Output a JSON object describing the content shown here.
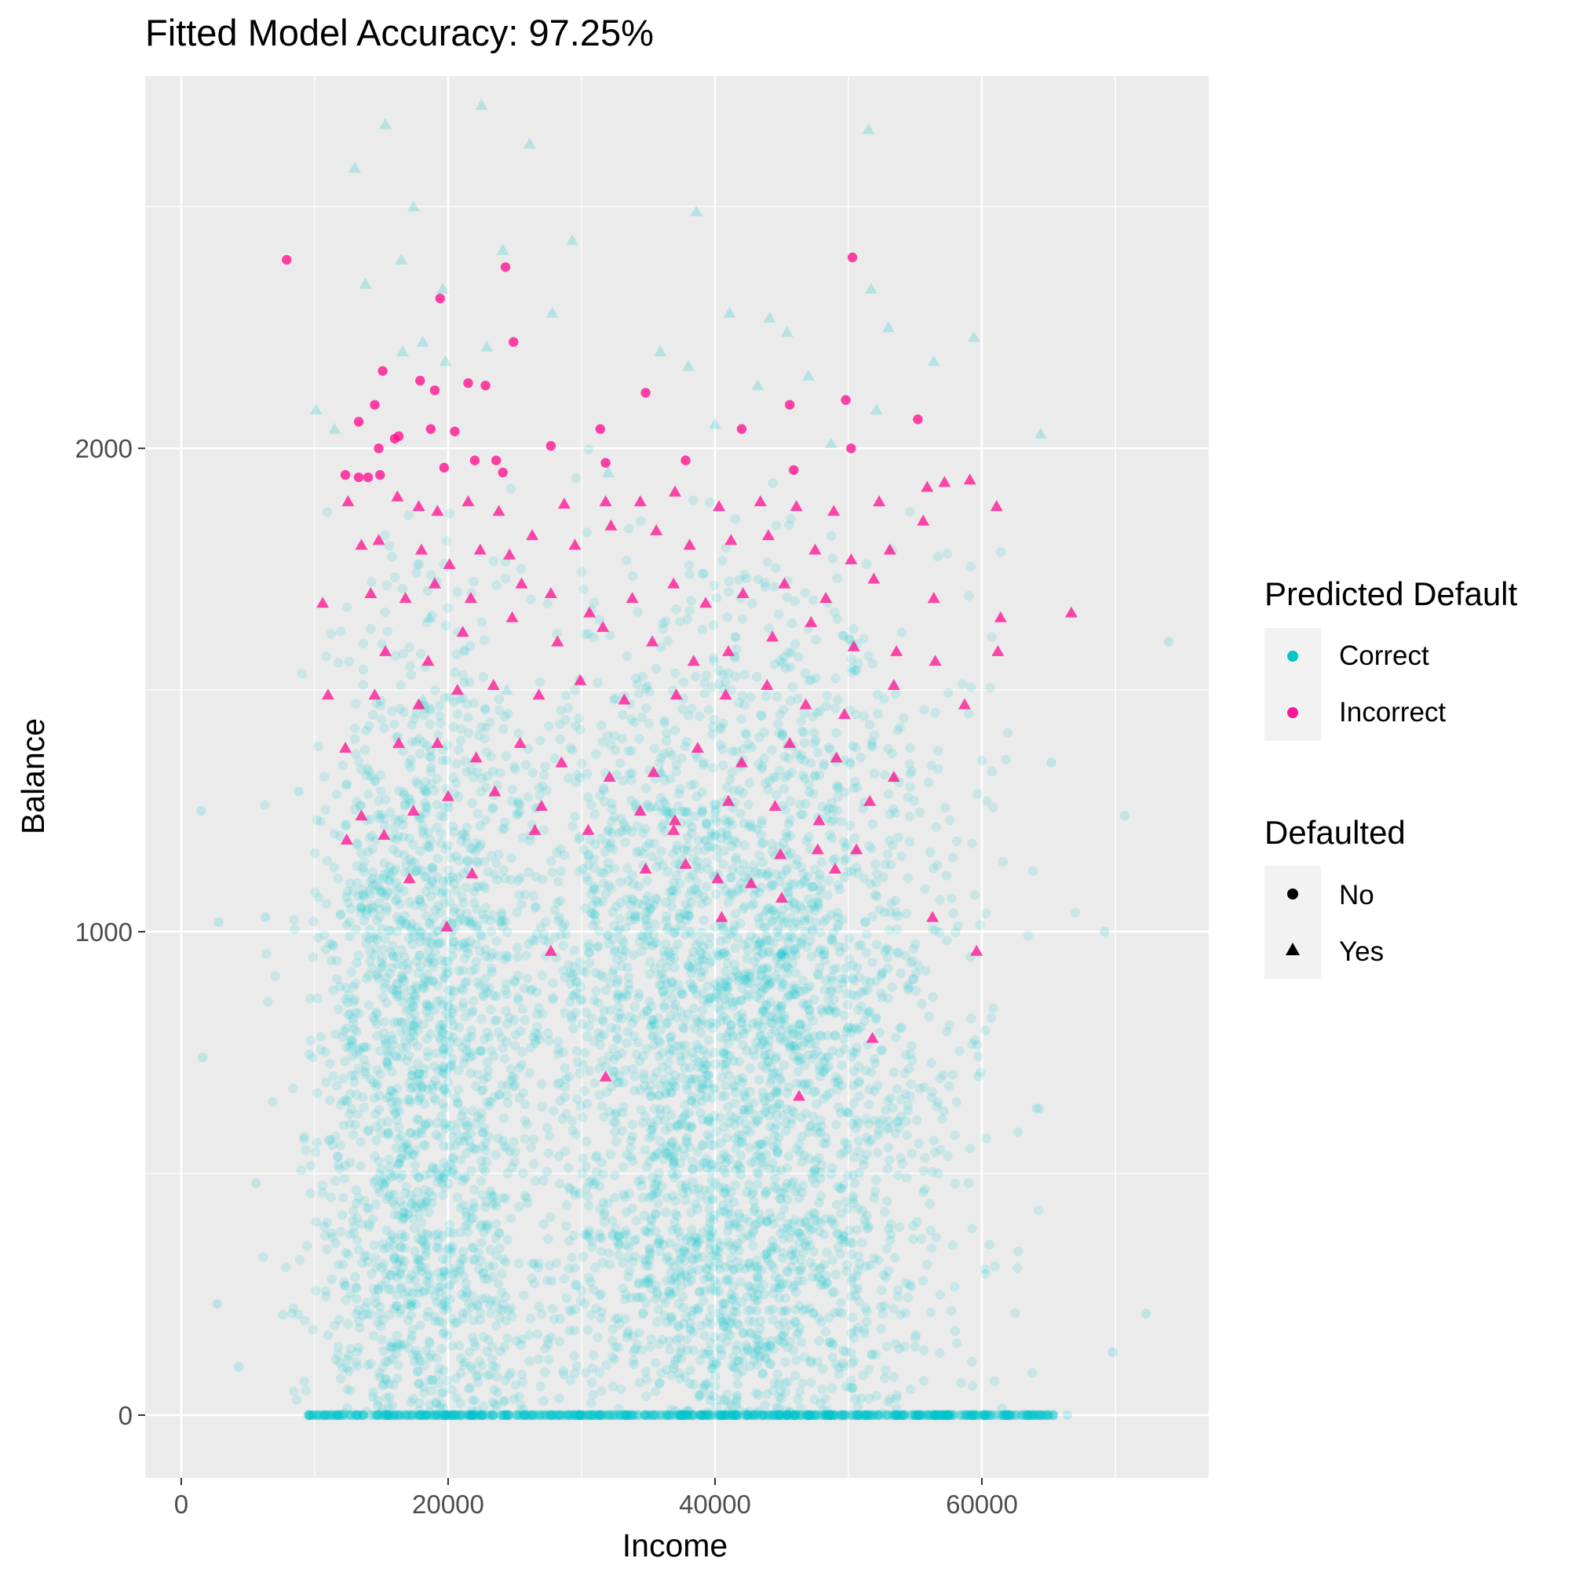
{
  "chart_data": {
    "type": "scatter",
    "title": "Fitted Model Accuracy: 97.25%",
    "xlabel": "Income",
    "ylabel": "Balance",
    "xlim": [
      -2700,
      77000
    ],
    "ylim": [
      -130,
      2770
    ],
    "x_ticks": [
      0,
      20000,
      40000,
      60000
    ],
    "y_ticks": [
      0,
      1000,
      2000
    ],
    "grid": true,
    "legend_placement": "right",
    "colors": {
      "correct": "#00c5cd",
      "incorrect": "#ff1493",
      "panel": "#ebebeb",
      "grid": "#ffffff"
    },
    "legends": [
      {
        "title": "Predicted Default",
        "entries": [
          {
            "label": "Correct",
            "color": "#00c5cd",
            "shape": "circle"
          },
          {
            "label": "Incorrect",
            "color": "#ff1493",
            "shape": "circle"
          }
        ]
      },
      {
        "title": "Defaulted",
        "entries": [
          {
            "label": "No",
            "color": "#000000",
            "shape": "circle"
          },
          {
            "label": "Yes",
            "color": "#000000",
            "shape": "triangle"
          }
        ]
      }
    ],
    "incorrect_no": [
      [
        7900,
        2390
      ],
      [
        24300,
        2375
      ],
      [
        50300,
        2395
      ],
      [
        19400,
        2310
      ],
      [
        24900,
        2220
      ],
      [
        15100,
        2160
      ],
      [
        17900,
        2140
      ],
      [
        19000,
        2120
      ],
      [
        21500,
        2135
      ],
      [
        22800,
        2130
      ],
      [
        34800,
        2115
      ],
      [
        14500,
        2090
      ],
      [
        45600,
        2090
      ],
      [
        49800,
        2100
      ],
      [
        13300,
        2055
      ],
      [
        18700,
        2040
      ],
      [
        20500,
        2035
      ],
      [
        31400,
        2040
      ],
      [
        42000,
        2040
      ],
      [
        55200,
        2060
      ],
      [
        14800,
        2000
      ],
      [
        16000,
        2020
      ],
      [
        27700,
        2005
      ],
      [
        50200,
        2000
      ],
      [
        22000,
        1975
      ],
      [
        23600,
        1975
      ],
      [
        31800,
        1970
      ],
      [
        37800,
        1975
      ],
      [
        12300,
        1945
      ],
      [
        13300,
        1940
      ],
      [
        14000,
        1940
      ],
      [
        14900,
        1945
      ],
      [
        24100,
        1950
      ],
      [
        45900,
        1955
      ],
      [
        19700,
        1960
      ],
      [
        16300,
        2025
      ]
    ],
    "incorrect_yes": [
      [
        12500,
        1890
      ],
      [
        16200,
        1900
      ],
      [
        17800,
        1880
      ],
      [
        19200,
        1870
      ],
      [
        21500,
        1890
      ],
      [
        23800,
        1870
      ],
      [
        28700,
        1885
      ],
      [
        31800,
        1890
      ],
      [
        34400,
        1890
      ],
      [
        37000,
        1910
      ],
      [
        40300,
        1880
      ],
      [
        43400,
        1890
      ],
      [
        46100,
        1880
      ],
      [
        48900,
        1870
      ],
      [
        52300,
        1890
      ],
      [
        55900,
        1920
      ],
      [
        57200,
        1930
      ],
      [
        59100,
        1935
      ],
      [
        61100,
        1880
      ],
      [
        13500,
        1800
      ],
      [
        14800,
        1810
      ],
      [
        18000,
        1790
      ],
      [
        20100,
        1760
      ],
      [
        22400,
        1790
      ],
      [
        24600,
        1780
      ],
      [
        26300,
        1820
      ],
      [
        29500,
        1800
      ],
      [
        32200,
        1840
      ],
      [
        35600,
        1830
      ],
      [
        38100,
        1800
      ],
      [
        41200,
        1810
      ],
      [
        44000,
        1820
      ],
      [
        47500,
        1790
      ],
      [
        50200,
        1770
      ],
      [
        53100,
        1790
      ],
      [
        55600,
        1850
      ],
      [
        10600,
        1680
      ],
      [
        14200,
        1700
      ],
      [
        16800,
        1690
      ],
      [
        19000,
        1720
      ],
      [
        21700,
        1690
      ],
      [
        25500,
        1720
      ],
      [
        27700,
        1700
      ],
      [
        30600,
        1660
      ],
      [
        33800,
        1690
      ],
      [
        36900,
        1720
      ],
      [
        39300,
        1680
      ],
      [
        42100,
        1700
      ],
      [
        45200,
        1720
      ],
      [
        48300,
        1690
      ],
      [
        51900,
        1730
      ],
      [
        56400,
        1690
      ],
      [
        61400,
        1650
      ],
      [
        66700,
        1660
      ],
      [
        15300,
        1580
      ],
      [
        18500,
        1560
      ],
      [
        21100,
        1620
      ],
      [
        24800,
        1650
      ],
      [
        28200,
        1600
      ],
      [
        31600,
        1630
      ],
      [
        35300,
        1600
      ],
      [
        38400,
        1560
      ],
      [
        41000,
        1580
      ],
      [
        44300,
        1610
      ],
      [
        47200,
        1640
      ],
      [
        50400,
        1590
      ],
      [
        53600,
        1580
      ],
      [
        56500,
        1560
      ],
      [
        61200,
        1580
      ],
      [
        11000,
        1490
      ],
      [
        14500,
        1490
      ],
      [
        17800,
        1470
      ],
      [
        20700,
        1500
      ],
      [
        23400,
        1510
      ],
      [
        26800,
        1490
      ],
      [
        29900,
        1520
      ],
      [
        33200,
        1480
      ],
      [
        37100,
        1490
      ],
      [
        40800,
        1490
      ],
      [
        43900,
        1510
      ],
      [
        46800,
        1470
      ],
      [
        49700,
        1450
      ],
      [
        53400,
        1510
      ],
      [
        58700,
        1470
      ],
      [
        12300,
        1380
      ],
      [
        16300,
        1390
      ],
      [
        19200,
        1390
      ],
      [
        22100,
        1360
      ],
      [
        25400,
        1390
      ],
      [
        28500,
        1350
      ],
      [
        32100,
        1320
      ],
      [
        35400,
        1330
      ],
      [
        38700,
        1380
      ],
      [
        42000,
        1350
      ],
      [
        45600,
        1390
      ],
      [
        49100,
        1360
      ],
      [
        53400,
        1320
      ],
      [
        13500,
        1240
      ],
      [
        17400,
        1250
      ],
      [
        20000,
        1280
      ],
      [
        23500,
        1290
      ],
      [
        27000,
        1260
      ],
      [
        30500,
        1210
      ],
      [
        34400,
        1250
      ],
      [
        37000,
        1230
      ],
      [
        41000,
        1270
      ],
      [
        44500,
        1260
      ],
      [
        47800,
        1230
      ],
      [
        51600,
        1270
      ],
      [
        12400,
        1190
      ],
      [
        15200,
        1200
      ],
      [
        26500,
        1210
      ],
      [
        36900,
        1210
      ],
      [
        44900,
        1160
      ],
      [
        47700,
        1170
      ],
      [
        50600,
        1170
      ],
      [
        17100,
        1110
      ],
      [
        21800,
        1120
      ],
      [
        34800,
        1130
      ],
      [
        37800,
        1140
      ],
      [
        40200,
        1110
      ],
      [
        42700,
        1100
      ],
      [
        45000,
        1070
      ],
      [
        49000,
        1130
      ],
      [
        19900,
        1010
      ],
      [
        40500,
        1030
      ],
      [
        56300,
        1030
      ],
      [
        27700,
        960
      ],
      [
        59600,
        960
      ],
      [
        51800,
        780
      ],
      [
        31800,
        700
      ],
      [
        46300,
        660
      ]
    ],
    "correct_yes": [
      [
        22500,
        2710
      ],
      [
        26100,
        2630
      ],
      [
        15300,
        2670
      ],
      [
        51500,
        2660
      ],
      [
        13000,
        2580
      ],
      [
        17400,
        2500
      ],
      [
        29300,
        2430
      ],
      [
        38600,
        2490
      ],
      [
        13800,
        2340
      ],
      [
        19600,
        2330
      ],
      [
        24100,
        2410
      ],
      [
        16500,
        2390
      ],
      [
        51700,
        2330
      ],
      [
        53000,
        2250
      ],
      [
        27800,
        2280
      ],
      [
        41100,
        2280
      ],
      [
        44100,
        2270
      ],
      [
        45400,
        2240
      ],
      [
        59400,
        2230
      ],
      [
        64400,
        2030
      ],
      [
        10100,
        2080
      ],
      [
        11500,
        2040
      ],
      [
        16600,
        2200
      ],
      [
        18100,
        2220
      ],
      [
        19800,
        2180
      ],
      [
        22900,
        2210
      ],
      [
        35900,
        2200
      ],
      [
        43200,
        2130
      ],
      [
        47000,
        2150
      ],
      [
        52100,
        2080
      ],
      [
        56400,
        2180
      ],
      [
        38000,
        2170
      ],
      [
        40000,
        2050
      ],
      [
        32000,
        1950
      ],
      [
        48700,
        2010
      ],
      [
        36000,
        1330
      ],
      [
        18100,
        1480
      ],
      [
        18600,
        1650
      ],
      [
        24400,
        1500
      ],
      [
        35600,
        1260
      ]
    ],
    "correct_no_sample": [
      [
        9500,
        0
      ],
      [
        12400,
        0
      ],
      [
        14600,
        0
      ],
      [
        17800,
        0
      ],
      [
        21000,
        0
      ],
      [
        24300,
        0
      ],
      [
        27600,
        0
      ],
      [
        30900,
        0
      ],
      [
        34200,
        0
      ],
      [
        37500,
        0
      ],
      [
        40800,
        0
      ],
      [
        44100,
        0
      ],
      [
        47400,
        0
      ],
      [
        50700,
        0
      ],
      [
        54000,
        0
      ],
      [
        57300,
        0
      ],
      [
        60600,
        0
      ],
      [
        63500,
        0
      ],
      [
        66400,
        0
      ],
      [
        74000,
        1600
      ],
      [
        72300,
        210
      ],
      [
        69800,
        130
      ],
      [
        70700,
        1240
      ],
      [
        69200,
        1000
      ],
      [
        65200,
        1350
      ],
      [
        1500,
        1250
      ],
      [
        2800,
        1020
      ],
      [
        1600,
        740
      ],
      [
        4300,
        100
      ],
      [
        2700,
        230
      ],
      [
        5600,
        480
      ],
      [
        8800,
        1290
      ],
      [
        6300,
        1030
      ]
    ]
  }
}
